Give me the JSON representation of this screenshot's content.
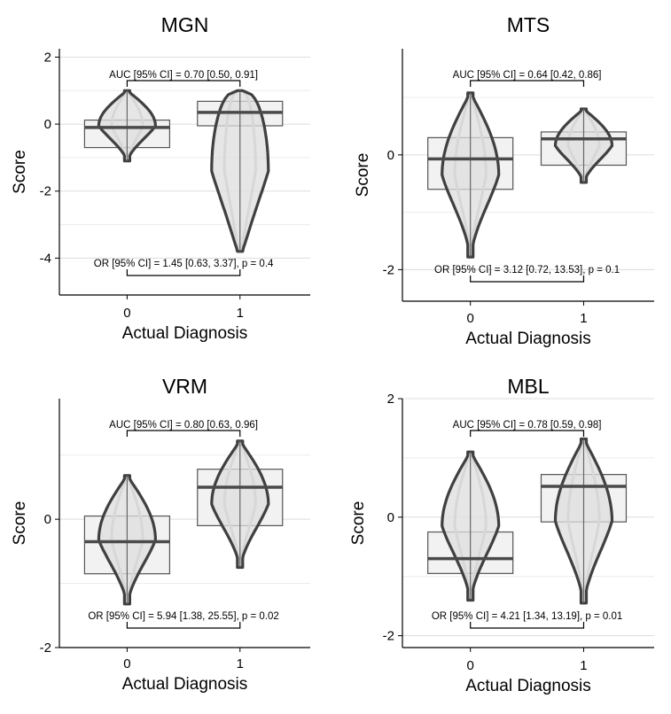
{
  "chart_data": [
    {
      "type": "boxplot-violin",
      "title": "MGN",
      "xlabel": "Actual Diagnosis",
      "ylabel": "Score",
      "categories": [
        "0",
        "1"
      ],
      "yticks": [
        2,
        0,
        -2,
        -4
      ],
      "ylim": [
        -5.1,
        2.25
      ],
      "boxes": [
        {
          "category": "0",
          "q1": -0.7,
          "median": -0.1,
          "q3": 0.12
        },
        {
          "category": "1",
          "q1": -0.05,
          "median": 0.35,
          "q3": 0.68
        }
      ],
      "violins": [
        {
          "category": "0",
          "min": -1.1,
          "max": 1.0
        },
        {
          "category": "1",
          "min": -3.8,
          "max": 1.0
        }
      ],
      "auc_label": "AUC [95% CI] = 0.70 [0.50, 0.91]",
      "or_label": "OR [95% CI] = 1.45 [0.63, 3.37], p = 0.4"
    },
    {
      "type": "boxplot-violin",
      "title": "MTS",
      "xlabel": "Actual Diagnosis",
      "ylabel": "Score",
      "categories": [
        "0",
        "1"
      ],
      "yticks": [
        0,
        -2
      ],
      "ylim": [
        -2.55,
        1.85
      ],
      "boxes": [
        {
          "category": "0",
          "q1": -0.6,
          "median": -0.07,
          "q3": 0.3
        },
        {
          "category": "1",
          "q1": -0.18,
          "median": 0.28,
          "q3": 0.4
        }
      ],
      "violins": [
        {
          "category": "0",
          "min": -1.78,
          "max": 1.08
        },
        {
          "category": "1",
          "min": -0.48,
          "max": 0.8
        }
      ],
      "auc_label": "AUC [95% CI] = 0.64 [0.42, 0.86]",
      "or_label": "OR [95% CI] = 3.12 [0.72, 13.53], p = 0.1"
    },
    {
      "type": "boxplot-violin",
      "title": "VRM",
      "xlabel": "Actual Diagnosis",
      "ylabel": "Score",
      "categories": [
        "0",
        "1"
      ],
      "yticks": [
        0,
        -2
      ],
      "ylim": [
        -2.0,
        1.88
      ],
      "boxes": [
        {
          "category": "0",
          "q1": -0.85,
          "median": -0.35,
          "q3": 0.05
        },
        {
          "category": "1",
          "q1": -0.1,
          "median": 0.5,
          "q3": 0.78
        }
      ],
      "violins": [
        {
          "category": "0",
          "min": -1.32,
          "max": 0.68
        },
        {
          "category": "1",
          "min": -0.75,
          "max": 1.22
        }
      ],
      "auc_label": "AUC [95% CI] = 0.80 [0.63, 0.96]",
      "or_label": "OR [95% CI] = 5.94 [1.38, 25.55], p = 0.02"
    },
    {
      "type": "boxplot-violin",
      "title": "MBL",
      "xlabel": "Actual Diagnosis",
      "ylabel": "Score",
      "categories": [
        "0",
        "1"
      ],
      "yticks": [
        2,
        0,
        -2
      ],
      "ylim": [
        -2.2,
        2.0
      ],
      "boxes": [
        {
          "category": "0",
          "q1": -0.95,
          "median": -0.7,
          "q3": -0.25
        },
        {
          "category": "1",
          "q1": -0.08,
          "median": 0.52,
          "q3": 0.72
        }
      ],
      "violins": [
        {
          "category": "0",
          "min": -1.4,
          "max": 1.1
        },
        {
          "category": "1",
          "min": -1.45,
          "max": 1.32
        }
      ],
      "auc_label": "AUC [95% CI] = 0.78 [0.59, 0.98]",
      "or_label": "OR [95% CI] = 4.21 [1.34, 13.19], p = 0.01"
    }
  ]
}
